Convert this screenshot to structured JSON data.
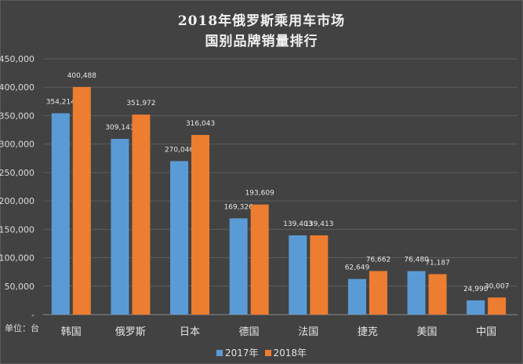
{
  "chart_data": {
    "type": "bar",
    "title": "2018年俄罗斯乘用车市场",
    "subtitle": "国别品牌销量排行",
    "unit_label": "单位：台",
    "categories": [
      "韩国",
      "俄罗斯",
      "日本",
      "德国",
      "法国",
      "捷克",
      "美国",
      "中国"
    ],
    "series": [
      {
        "name": "2017年",
        "color": "#5b9bd5",
        "values": [
          354214,
          309143,
          270046,
          169326,
          139403,
          62649,
          76480,
          24990
        ]
      },
      {
        "name": "2018年",
        "color": "#ed7d31",
        "values": [
          400488,
          351972,
          316043,
          193609,
          139413,
          76662,
          71187,
          30007
        ]
      }
    ],
    "ylim": [
      0,
      450000
    ],
    "yticks": [
      0,
      50000,
      100000,
      150000,
      200000,
      250000,
      300000,
      350000,
      400000,
      450000
    ],
    "ytick_labels": [
      "-",
      "50,000",
      "100,000",
      "150,000",
      "200,000",
      "250,000",
      "300,000",
      "350,000",
      "400,000",
      "450,000"
    ],
    "grid": true,
    "legend": "bottom"
  }
}
